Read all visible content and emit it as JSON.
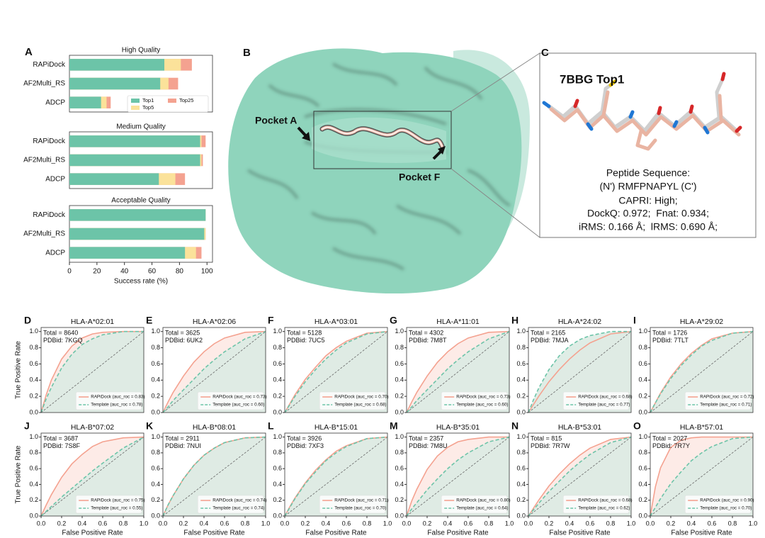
{
  "chart_data": [
    {
      "type": "bar",
      "orientation": "horizontal",
      "panel": "A",
      "categories": [
        "RAPiDock",
        "AF2Multi_RS",
        "ADCP"
      ],
      "series": [
        {
          "name": "Top1",
          "color": "#6cc4a8"
        },
        {
          "name": "Top5",
          "color": "#fbe29a"
        },
        {
          "name": "Top25",
          "color": "#f4a290"
        }
      ],
      "subplots": [
        {
          "title": "High Quality",
          "values": [
            [
              69,
              66,
              23
            ],
            [
              81,
              72,
              27
            ],
            [
              89,
              79,
              30
            ]
          ]
        },
        {
          "title": "Medium Quality",
          "values": [
            [
              95,
              95,
              65
            ],
            [
              96,
              96,
              77
            ],
            [
              99,
              97,
              84
            ]
          ]
        },
        {
          "title": "Acceptable Quality",
          "values": [
            [
              99,
              98,
              84
            ],
            [
              99,
              99,
              92
            ],
            [
              99,
              99,
              96
            ]
          ]
        }
      ],
      "xlim": [
        0,
        104
      ],
      "xticks": [
        0,
        20,
        40,
        60,
        80,
        100
      ],
      "xlabel": "Success rate (%)",
      "legend": "lower right"
    },
    {
      "type": "line",
      "panel": "D",
      "title": "HLA-A*02:01",
      "annotations": [
        "Total = 8640",
        "PDBid: 7KGQ"
      ],
      "ylabel": "True Positive Rate",
      "x": [
        0,
        0.05,
        0.1,
        0.2,
        0.3,
        0.4,
        0.5,
        0.6,
        0.8,
        1.0
      ],
      "series": [
        {
          "name": "RAPiDock (auc_roc = 0.83)",
          "color": "#f4a290",
          "values": [
            0,
            0.22,
            0.4,
            0.66,
            0.82,
            0.92,
            0.97,
            0.99,
            1.0,
            1.0
          ]
        },
        {
          "name": "Template (auc_roc = 0.78)",
          "color": "#6cc4a8",
          "dash": true,
          "values": [
            0,
            0.17,
            0.31,
            0.55,
            0.72,
            0.84,
            0.91,
            0.96,
            1.0,
            1.0
          ]
        }
      ],
      "xlim": [
        0,
        1
      ],
      "ylim": [
        0,
        1.05
      ],
      "yticks": [
        {
          "value": 0,
          "label": "0.0"
        },
        0.2,
        0.4,
        0.6,
        0.8,
        {
          "value": 1,
          "label": "1.0"
        }
      ],
      "legend": "lower right"
    },
    {
      "type": "line",
      "panel": "E",
      "title": "HLA-A*02:06",
      "annotations": [
        "Total = 3625",
        "PDBid: 6UK2"
      ],
      "x": [
        0,
        0.05,
        0.1,
        0.2,
        0.3,
        0.4,
        0.5,
        0.6,
        0.8,
        1.0
      ],
      "series": [
        {
          "name": "RAPiDock (auc_roc = 0.73)",
          "color": "#f4a290",
          "values": [
            0,
            0.13,
            0.25,
            0.45,
            0.62,
            0.75,
            0.85,
            0.92,
            0.99,
            1.0
          ]
        },
        {
          "name": "Template (auc_roc = 0.60)",
          "color": "#6cc4a8",
          "dash": true,
          "values": [
            0,
            0.07,
            0.15,
            0.28,
            0.41,
            0.54,
            0.65,
            0.75,
            0.91,
            1.0
          ]
        }
      ],
      "xlim": [
        0,
        1
      ],
      "ylim": [
        0,
        1.05
      ],
      "yticks": [
        {
          "value": 0,
          "label": "0.0"
        },
        0.2,
        0.4,
        0.6,
        0.8,
        {
          "value": 1,
          "label": "1.0"
        }
      ],
      "legend": "lower right"
    },
    {
      "type": "line",
      "panel": "F",
      "title": "HLA-A*03:01",
      "annotations": [
        "Total = 5128",
        "PDBid: 7UC5"
      ],
      "x": [
        0,
        0.05,
        0.1,
        0.2,
        0.3,
        0.4,
        0.5,
        0.6,
        0.8,
        1.0
      ],
      "series": [
        {
          "name": "RAPiDock (auc_roc = 0.70)",
          "color": "#f4a290",
          "values": [
            0,
            0.11,
            0.22,
            0.41,
            0.56,
            0.7,
            0.8,
            0.88,
            0.98,
            1.0
          ]
        },
        {
          "name": "Template (auc_roc = 0.68)",
          "color": "#6cc4a8",
          "dash": true,
          "values": [
            0,
            0.1,
            0.2,
            0.38,
            0.53,
            0.66,
            0.77,
            0.86,
            0.97,
            1.0
          ]
        }
      ],
      "xlim": [
        0,
        1
      ],
      "ylim": [
        0,
        1.05
      ],
      "yticks": [
        {
          "value": 0,
          "label": "0.0"
        },
        0.2,
        0.4,
        0.6,
        0.8,
        {
          "value": 1,
          "label": "1.0"
        }
      ],
      "legend": "lower right"
    },
    {
      "type": "line",
      "panel": "G",
      "title": "HLA-A*11:01",
      "annotations": [
        "Total = 4302",
        "PDBid: 7M8T"
      ],
      "x": [
        0,
        0.05,
        0.1,
        0.2,
        0.3,
        0.4,
        0.5,
        0.6,
        0.8,
        1.0
      ],
      "series": [
        {
          "name": "RAPiDock (auc_roc = 0.73)",
          "color": "#f4a290",
          "values": [
            0,
            0.13,
            0.25,
            0.45,
            0.62,
            0.75,
            0.85,
            0.92,
            0.99,
            1.0
          ]
        },
        {
          "name": "Template (auc_roc = 0.60)",
          "color": "#6cc4a8",
          "dash": true,
          "values": [
            0,
            0.07,
            0.15,
            0.28,
            0.41,
            0.54,
            0.65,
            0.75,
            0.91,
            1.0
          ]
        }
      ],
      "xlim": [
        0,
        1
      ],
      "ylim": [
        0,
        1.05
      ],
      "yticks": [
        {
          "value": 0,
          "label": "0.0"
        },
        0.2,
        0.4,
        0.6,
        0.8,
        {
          "value": 1,
          "label": "1.0"
        }
      ],
      "legend": "lower right"
    },
    {
      "type": "line",
      "panel": "H",
      "title": "HLA-A*24:02",
      "annotations": [
        "Total = 2165",
        "PDBid: 7MJA"
      ],
      "x": [
        0,
        0.05,
        0.1,
        0.2,
        0.3,
        0.4,
        0.5,
        0.6,
        0.8,
        1.0
      ],
      "series": [
        {
          "name": "RAPiDock (auc_roc = 0.68)",
          "color": "#f4a290",
          "values": [
            0,
            0.1,
            0.2,
            0.38,
            0.53,
            0.66,
            0.77,
            0.86,
            0.97,
            1.0
          ]
        },
        {
          "name": "Template (auc_roc = 0.77)",
          "color": "#6cc4a8",
          "dash": true,
          "values": [
            0,
            0.16,
            0.3,
            0.53,
            0.7,
            0.82,
            0.9,
            0.95,
            1.0,
            1.0
          ]
        }
      ],
      "xlim": [
        0,
        1
      ],
      "ylim": [
        0,
        1.05
      ],
      "yticks": [
        {
          "value": 0,
          "label": "0.0"
        },
        0.2,
        0.4,
        0.6,
        0.8,
        {
          "value": 1,
          "label": "1.0"
        }
      ],
      "legend": "lower right"
    },
    {
      "type": "line",
      "panel": "I",
      "title": "HLA-A*29:02",
      "annotations": [
        "Total = 1726",
        "PDBid: 7TLT"
      ],
      "x": [
        0,
        0.05,
        0.1,
        0.2,
        0.3,
        0.4,
        0.5,
        0.6,
        0.8,
        1.0
      ],
      "series": [
        {
          "name": "RAPiDock (auc_roc = 0.72)",
          "color": "#f4a290",
          "values": [
            0,
            0.12,
            0.24,
            0.44,
            0.6,
            0.73,
            0.83,
            0.91,
            0.98,
            1.0
          ]
        },
        {
          "name": "Template (auc_roc = 0.71)",
          "color": "#6cc4a8",
          "dash": true,
          "values": [
            0,
            0.12,
            0.23,
            0.42,
            0.58,
            0.71,
            0.82,
            0.89,
            0.98,
            1.0
          ]
        }
      ],
      "xlim": [
        0,
        1
      ],
      "ylim": [
        0,
        1.05
      ],
      "yticks": [
        {
          "value": 0,
          "label": "0.0"
        },
        0.2,
        0.4,
        0.6,
        0.8,
        {
          "value": 1,
          "label": "1.0"
        }
      ],
      "legend": "lower right"
    },
    {
      "type": "line",
      "panel": "J",
      "title": "HLA-B*07:02",
      "annotations": [
        "Total = 3687",
        "PDBid: 7S8F"
      ],
      "ylabel": "True Positive Rate",
      "xlabel": "False Positive Rate",
      "x": [
        0,
        0.05,
        0.1,
        0.2,
        0.3,
        0.4,
        0.5,
        0.6,
        0.8,
        1.0
      ],
      "series": [
        {
          "name": "RAPiDock (auc_roc = 0.75)",
          "color": "#f4a290",
          "values": [
            0,
            0.14,
            0.27,
            0.49,
            0.66,
            0.78,
            0.88,
            0.94,
            0.99,
            1.0
          ]
        },
        {
          "name": "Template (auc_roc = 0.55)",
          "color": "#6cc4a8",
          "dash": true,
          "values": [
            0,
            0.06,
            0.12,
            0.24,
            0.35,
            0.46,
            0.57,
            0.67,
            0.86,
            1.0
          ]
        }
      ],
      "xlim": [
        0,
        1
      ],
      "ylim": [
        0,
        1.05
      ],
      "xticks": [
        {
          "value": 0,
          "label": "0.0"
        },
        0.2,
        0.4,
        0.6,
        0.8,
        {
          "value": 1,
          "label": "1.0"
        }
      ],
      "yticks": [
        {
          "value": 0,
          "label": "0.0"
        },
        0.2,
        0.4,
        0.6,
        0.8,
        {
          "value": 1,
          "label": "1.0"
        }
      ],
      "legend": "lower right"
    },
    {
      "type": "line",
      "panel": "K",
      "title": "HLA-B*08:01",
      "annotations": [
        "Total = 2911",
        "PDBid: 7NUI"
      ],
      "xlabel": "False Positive Rate",
      "x": [
        0,
        0.05,
        0.1,
        0.2,
        0.3,
        0.4,
        0.5,
        0.6,
        0.8,
        1.0
      ],
      "series": [
        {
          "name": "RAPiDock (auc_roc = 0.74)",
          "color": "#f4a290",
          "values": [
            0,
            0.14,
            0.26,
            0.47,
            0.64,
            0.77,
            0.86,
            0.93,
            0.99,
            1.0
          ]
        },
        {
          "name": "Template (auc_roc = 0.74)",
          "color": "#6cc4a8",
          "dash": true,
          "values": [
            0,
            0.14,
            0.26,
            0.47,
            0.64,
            0.77,
            0.86,
            0.93,
            0.99,
            1.0
          ]
        }
      ],
      "xlim": [
        0,
        1
      ],
      "ylim": [
        0,
        1.05
      ],
      "xticks": [
        {
          "value": 0,
          "label": "0.0"
        },
        0.2,
        0.4,
        0.6,
        0.8,
        {
          "value": 1,
          "label": "1.0"
        }
      ],
      "yticks": [
        {
          "value": 0,
          "label": "0.0"
        },
        0.2,
        0.4,
        0.6,
        0.8,
        {
          "value": 1,
          "label": "1.0"
        }
      ],
      "legend": "lower right"
    },
    {
      "type": "line",
      "panel": "L",
      "title": "HLA-B*15:01",
      "annotations": [
        "Total = 3926",
        "PDBid: 7XF3"
      ],
      "xlabel": "False Positive Rate",
      "x": [
        0,
        0.05,
        0.1,
        0.2,
        0.3,
        0.4,
        0.5,
        0.6,
        0.8,
        1.0
      ],
      "series": [
        {
          "name": "RAPiDock (auc_roc = 0.71)",
          "color": "#f4a290",
          "values": [
            0,
            0.12,
            0.23,
            0.42,
            0.58,
            0.71,
            0.82,
            0.89,
            0.98,
            1.0
          ]
        },
        {
          "name": "Template (auc_roc = 0.70)",
          "color": "#6cc4a8",
          "dash": true,
          "values": [
            0,
            0.11,
            0.22,
            0.41,
            0.56,
            0.7,
            0.8,
            0.88,
            0.98,
            1.0
          ]
        }
      ],
      "xlim": [
        0,
        1
      ],
      "ylim": [
        0,
        1.05
      ],
      "xticks": [
        {
          "value": 0,
          "label": "0.0"
        },
        0.2,
        0.4,
        0.6,
        0.8,
        {
          "value": 1,
          "label": "1.0"
        }
      ],
      "yticks": [
        {
          "value": 0,
          "label": "0.0"
        },
        0.2,
        0.4,
        0.6,
        0.8,
        {
          "value": 1,
          "label": "1.0"
        }
      ],
      "legend": "lower right"
    },
    {
      "type": "line",
      "panel": "M",
      "title": "HLA-B*35:01",
      "annotations": [
        "Total = 2357",
        "PDBid: 7M8U"
      ],
      "xlabel": "False Positive Rate",
      "x": [
        0,
        0.05,
        0.1,
        0.2,
        0.3,
        0.4,
        0.5,
        0.6,
        0.8,
        1.0
      ],
      "series": [
        {
          "name": "RAPiDock (auc_roc = 0.80)",
          "color": "#f4a290",
          "values": [
            0,
            0.19,
            0.34,
            0.59,
            0.76,
            0.87,
            0.94,
            0.97,
            1.0,
            1.0
          ]
        },
        {
          "name": "Template (auc_roc = 0.64)",
          "color": "#6cc4a8",
          "dash": true,
          "values": [
            0,
            0.09,
            0.17,
            0.33,
            0.47,
            0.6,
            0.71,
            0.8,
            0.94,
            1.0
          ]
        }
      ],
      "xlim": [
        0,
        1
      ],
      "ylim": [
        0,
        1.05
      ],
      "xticks": [
        {
          "value": 0,
          "label": "0.0"
        },
        0.2,
        0.4,
        0.6,
        0.8,
        {
          "value": 1,
          "label": "1.0"
        }
      ],
      "yticks": [
        {
          "value": 0,
          "label": "0.0"
        },
        0.2,
        0.4,
        0.6,
        0.8,
        {
          "value": 1,
          "label": "1.0"
        }
      ],
      "legend": "lower right"
    },
    {
      "type": "line",
      "panel": "N",
      "title": "HLA-B*53:01",
      "annotations": [
        "Total = 815",
        "PDBid: 7R7W"
      ],
      "xlabel": "False Positive Rate",
      "x": [
        0,
        0.05,
        0.1,
        0.2,
        0.3,
        0.4,
        0.5,
        0.6,
        0.8,
        1.0
      ],
      "series": [
        {
          "name": "RAPiDock (auc_roc = 0.68)",
          "color": "#f4a290",
          "values": [
            0,
            0.1,
            0.2,
            0.38,
            0.53,
            0.66,
            0.77,
            0.86,
            0.97,
            1.0
          ]
        },
        {
          "name": "Template (auc_roc = 0.62)",
          "color": "#6cc4a8",
          "dash": true,
          "values": [
            0,
            0.08,
            0.16,
            0.31,
            0.44,
            0.57,
            0.68,
            0.78,
            0.93,
            1.0
          ]
        }
      ],
      "xlim": [
        0,
        1
      ],
      "ylim": [
        0,
        1.05
      ],
      "xticks": [
        {
          "value": 0,
          "label": "0.0"
        },
        0.2,
        0.4,
        0.6,
        0.8,
        {
          "value": 1,
          "label": "1.0"
        }
      ],
      "yticks": [
        {
          "value": 0,
          "label": "0.0"
        },
        0.2,
        0.4,
        0.6,
        0.8,
        {
          "value": 1,
          "label": "1.0"
        }
      ],
      "legend": "lower right"
    },
    {
      "type": "line",
      "panel": "O",
      "title": "HLA-B*57:01",
      "annotations": [
        "Total = 2027",
        "PDBid: 7R7Y"
      ],
      "xlabel": "False Positive Rate",
      "x": [
        0,
        0.05,
        0.1,
        0.2,
        0.3,
        0.4,
        0.5,
        0.6,
        0.8,
        1.0
      ],
      "series": [
        {
          "name": "RAPiDock (auc_roc = 0.90)",
          "color": "#f4a290",
          "values": [
            0,
            0.37,
            0.61,
            0.87,
            0.96,
            0.99,
            1.0,
            1.0,
            1.0,
            1.0
          ]
        },
        {
          "name": "Template (auc_roc = 0.70)",
          "color": "#6cc4a8",
          "dash": true,
          "values": [
            0,
            0.11,
            0.22,
            0.41,
            0.56,
            0.7,
            0.8,
            0.88,
            0.98,
            1.0
          ]
        }
      ],
      "xlim": [
        0,
        1
      ],
      "ylim": [
        0,
        1.05
      ],
      "xticks": [
        {
          "value": 0,
          "label": "0.0"
        },
        0.2,
        0.4,
        0.6,
        0.8,
        {
          "value": 1,
          "label": "1.0"
        }
      ],
      "yticks": [
        {
          "value": 0,
          "label": "0.0"
        },
        0.2,
        0.4,
        0.6,
        0.8,
        {
          "value": 1,
          "label": "1.0"
        }
      ],
      "legend": "lower right"
    }
  ],
  "structure": {
    "panel": "B",
    "pocket_labels": [
      "Pocket A",
      "Pocket F"
    ]
  },
  "complex": {
    "panel": "C",
    "title": "7BBG Top1",
    "lines": [
      "Peptide Sequence:",
      "(N') RMFPNAPYL (C')",
      "CAPRI: High;",
      "DockQ: 0.972;  Fnat: 0.934;",
      "iRMS: 0.166 Å;  lRMS: 0.690 Å;"
    ]
  }
}
